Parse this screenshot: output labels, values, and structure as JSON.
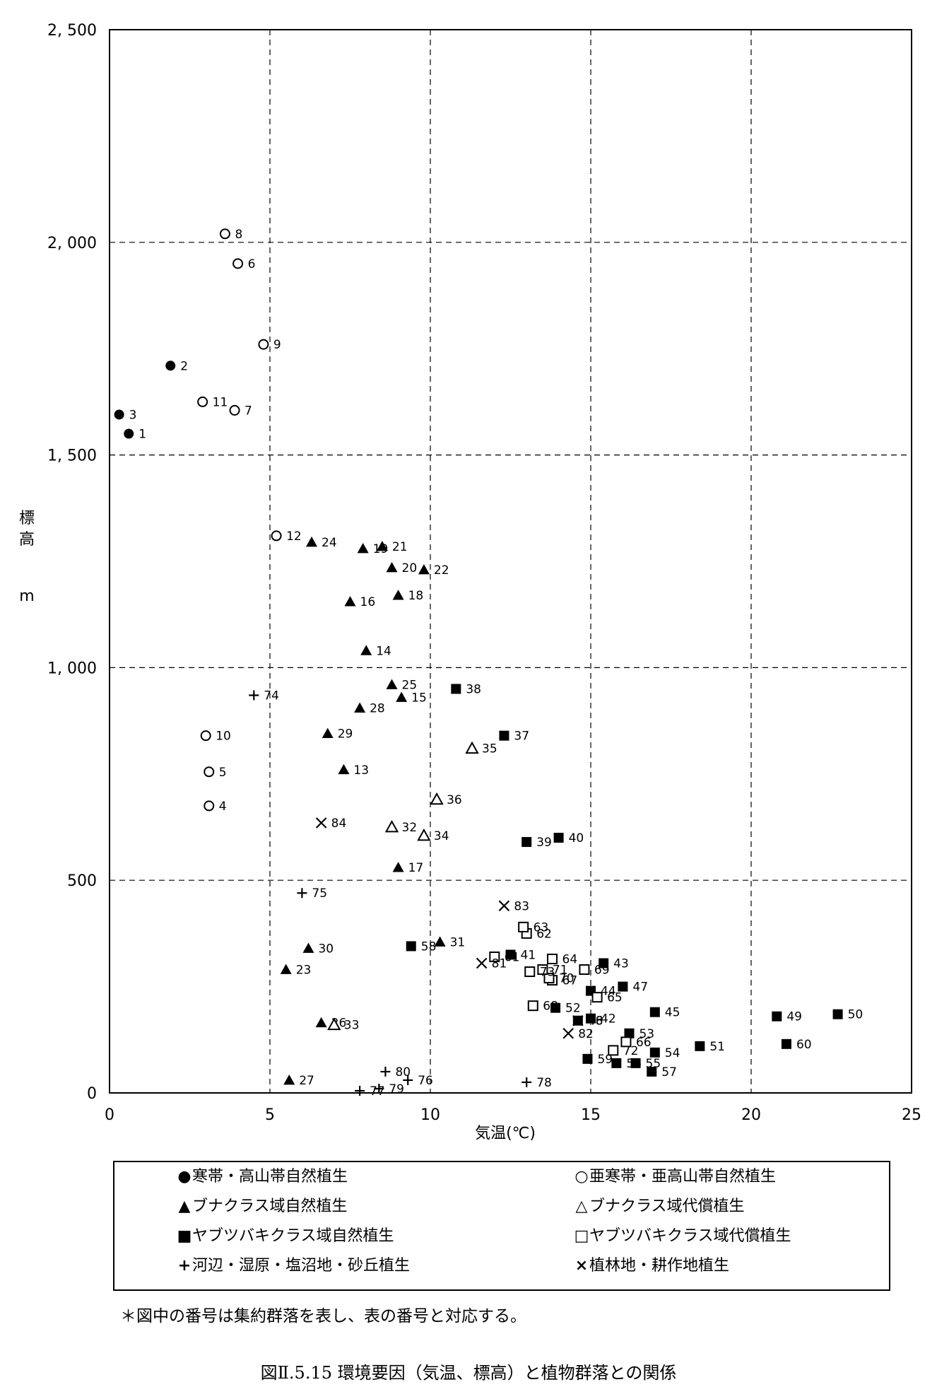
{
  "chart_data": {
    "type": "scatter",
    "xlabel": "気温(℃)",
    "ylabel": "標高 m",
    "xlim": [
      0,
      25
    ],
    "ylim": [
      0,
      2500
    ],
    "x_ticks": [
      0,
      5,
      10,
      15,
      20,
      25
    ],
    "x_tick_labels": [
      "0",
      "5",
      "10",
      "15",
      "20",
      "25"
    ],
    "y_ticks": [
      0,
      500,
      1000,
      1500,
      2000,
      2500
    ],
    "y_tick_labels": [
      "0",
      "500",
      "1, 000",
      "1, 500",
      "2, 000",
      "2, 500"
    ],
    "grid": true,
    "series": [
      {
        "name": "寒帯・高山帯自然植生",
        "marker": "filled-circle",
        "points": [
          {
            "id": "1",
            "x": 0.6,
            "y": 1550
          },
          {
            "id": "2",
            "x": 1.9,
            "y": 1710
          },
          {
            "id": "3",
            "x": 0.3,
            "y": 1595
          }
        ]
      },
      {
        "name": "亜寒帯・亜高山帯自然植生",
        "marker": "open-circle",
        "points": [
          {
            "id": "4",
            "x": 3.1,
            "y": 675
          },
          {
            "id": "5",
            "x": 3.1,
            "y": 755
          },
          {
            "id": "6",
            "x": 4.0,
            "y": 1950
          },
          {
            "id": "7",
            "x": 3.9,
            "y": 1605
          },
          {
            "id": "8",
            "x": 3.6,
            "y": 2020
          },
          {
            "id": "9",
            "x": 4.8,
            "y": 1760
          },
          {
            "id": "10",
            "x": 3.0,
            "y": 840
          },
          {
            "id": "11",
            "x": 2.9,
            "y": 1625
          },
          {
            "id": "12",
            "x": 5.2,
            "y": 1310
          }
        ]
      },
      {
        "name": "ブナクラス域自然植生",
        "marker": "filled-triangle",
        "points": [
          {
            "id": "13",
            "x": 7.3,
            "y": 760
          },
          {
            "id": "14",
            "x": 8.0,
            "y": 1040
          },
          {
            "id": "15",
            "x": 9.1,
            "y": 930
          },
          {
            "id": "16",
            "x": 7.5,
            "y": 1155
          },
          {
            "id": "17",
            "x": 9.0,
            "y": 530
          },
          {
            "id": "18",
            "x": 9.0,
            "y": 1170
          },
          {
            "id": "19",
            "x": 7.9,
            "y": 1280
          },
          {
            "id": "20",
            "x": 8.8,
            "y": 1235
          },
          {
            "id": "21",
            "x": 8.5,
            "y": 1285
          },
          {
            "id": "22",
            "x": 9.8,
            "y": 1230
          },
          {
            "id": "23",
            "x": 5.5,
            "y": 290
          },
          {
            "id": "24",
            "x": 6.3,
            "y": 1295
          },
          {
            "id": "25",
            "x": 8.8,
            "y": 960
          },
          {
            "id": "26",
            "x": 6.6,
            "y": 165
          },
          {
            "id": "27",
            "x": 5.6,
            "y": 30
          },
          {
            "id": "28",
            "x": 7.8,
            "y": 905
          },
          {
            "id": "29",
            "x": 6.8,
            "y": 845
          },
          {
            "id": "30",
            "x": 6.2,
            "y": 340
          },
          {
            "id": "31",
            "x": 10.3,
            "y": 355
          }
        ]
      },
      {
        "name": "ブナクラス域代償植生",
        "marker": "open-triangle",
        "points": [
          {
            "id": "32",
            "x": 8.8,
            "y": 625
          },
          {
            "id": "33",
            "x": 7.0,
            "y": 160
          },
          {
            "id": "34",
            "x": 9.8,
            "y": 605
          },
          {
            "id": "35",
            "x": 11.3,
            "y": 810
          },
          {
            "id": "36",
            "x": 10.2,
            "y": 690
          }
        ]
      },
      {
        "name": "ヤブツバキクラス域自然植生",
        "marker": "filled-square",
        "points": [
          {
            "id": "37",
            "x": 12.3,
            "y": 840
          },
          {
            "id": "38",
            "x": 10.8,
            "y": 950
          },
          {
            "id": "39",
            "x": 13.0,
            "y": 590
          },
          {
            "id": "40",
            "x": 14.0,
            "y": 600
          },
          {
            "id": "41",
            "x": 12.5,
            "y": 325
          },
          {
            "id": "42",
            "x": 15.0,
            "y": 175
          },
          {
            "id": "43",
            "x": 15.4,
            "y": 305
          },
          {
            "id": "44",
            "x": 15.0,
            "y": 240
          },
          {
            "id": "45",
            "x": 17.0,
            "y": 190
          },
          {
            "id": "47",
            "x": 16.0,
            "y": 250
          },
          {
            "id": "48",
            "x": 14.6,
            "y": 170
          },
          {
            "id": "49",
            "x": 20.8,
            "y": 180
          },
          {
            "id": "50",
            "x": 22.7,
            "y": 185
          },
          {
            "id": "51",
            "x": 18.4,
            "y": 110
          },
          {
            "id": "52",
            "x": 13.9,
            "y": 200
          },
          {
            "id": "53",
            "x": 16.2,
            "y": 140
          },
          {
            "id": "54",
            "x": 17.0,
            "y": 95
          },
          {
            "id": "55",
            "x": 16.4,
            "y": 70
          },
          {
            "id": "56",
            "x": 15.8,
            "y": 70
          },
          {
            "id": "57",
            "x": 16.9,
            "y": 50
          },
          {
            "id": "58",
            "x": 9.4,
            "y": 345
          },
          {
            "id": "59",
            "x": 14.9,
            "y": 80
          },
          {
            "id": "60",
            "x": 21.1,
            "y": 115
          }
        ]
      },
      {
        "name": "ヤブツバキクラス域代償植生",
        "marker": "open-square",
        "points": [
          {
            "id": "61",
            "x": 12.0,
            "y": 320
          },
          {
            "id": "62",
            "x": 13.0,
            "y": 375
          },
          {
            "id": "63",
            "x": 12.9,
            "y": 390
          },
          {
            "id": "64",
            "x": 13.8,
            "y": 315
          },
          {
            "id": "65",
            "x": 15.2,
            "y": 225
          },
          {
            "id": "66",
            "x": 16.1,
            "y": 120
          },
          {
            "id": "67",
            "x": 13.8,
            "y": 265
          },
          {
            "id": "68",
            "x": 13.2,
            "y": 205
          },
          {
            "id": "69",
            "x": 14.8,
            "y": 290
          },
          {
            "id": "70",
            "x": 13.7,
            "y": 270
          },
          {
            "id": "71",
            "x": 13.5,
            "y": 290
          },
          {
            "id": "72",
            "x": 15.7,
            "y": 100
          },
          {
            "id": "73",
            "x": 13.1,
            "y": 285
          }
        ]
      },
      {
        "name": "河辺・湿原・塩沼地・砂丘植生",
        "marker": "plus",
        "points": [
          {
            "id": "74",
            "x": 4.5,
            "y": 935
          },
          {
            "id": "75",
            "x": 6.0,
            "y": 470
          },
          {
            "id": "76",
            "x": 9.3,
            "y": 30
          },
          {
            "id": "77",
            "x": 7.8,
            "y": 5
          },
          {
            "id": "78",
            "x": 13.0,
            "y": 25
          },
          {
            "id": "79",
            "x": 8.4,
            "y": 10
          },
          {
            "id": "80",
            "x": 8.6,
            "y": 50
          }
        ]
      },
      {
        "name": "植林地・耕作地植生",
        "marker": "cross",
        "points": [
          {
            "id": "81",
            "x": 11.6,
            "y": 305
          },
          {
            "id": "82",
            "x": 14.3,
            "y": 140
          },
          {
            "id": "83",
            "x": 12.3,
            "y": 440
          },
          {
            "id": "84",
            "x": 6.6,
            "y": 635
          },
          {
            "id": "46",
            "x": 14.6,
            "y": 170
          }
        ]
      }
    ]
  },
  "legend": {
    "items": [
      {
        "symbol": "●",
        "label": "寒帯・高山帯自然植生"
      },
      {
        "symbol": "○",
        "label": "亜寒帯・亜高山帯自然植生"
      },
      {
        "symbol": "▲",
        "label": "ブナクラス域自然植生"
      },
      {
        "symbol": "△",
        "label": "ブナクラス域代償植生"
      },
      {
        "symbol": "■",
        "label": "ヤブツバキクラス域自然植生"
      },
      {
        "symbol": "□",
        "label": "ヤブツバキクラス域代償植生"
      },
      {
        "symbol": "+",
        "label": "河辺・湿原・塩沼地・砂丘植生"
      },
      {
        "symbol": "×",
        "label": "植林地・耕作地植生"
      }
    ]
  },
  "footnote": "＊図中の番号は集約群落を表し、表の番号と対応する。",
  "caption": "図Ⅱ.5.15 環境要因（気温、標高）と植物群落との関係"
}
